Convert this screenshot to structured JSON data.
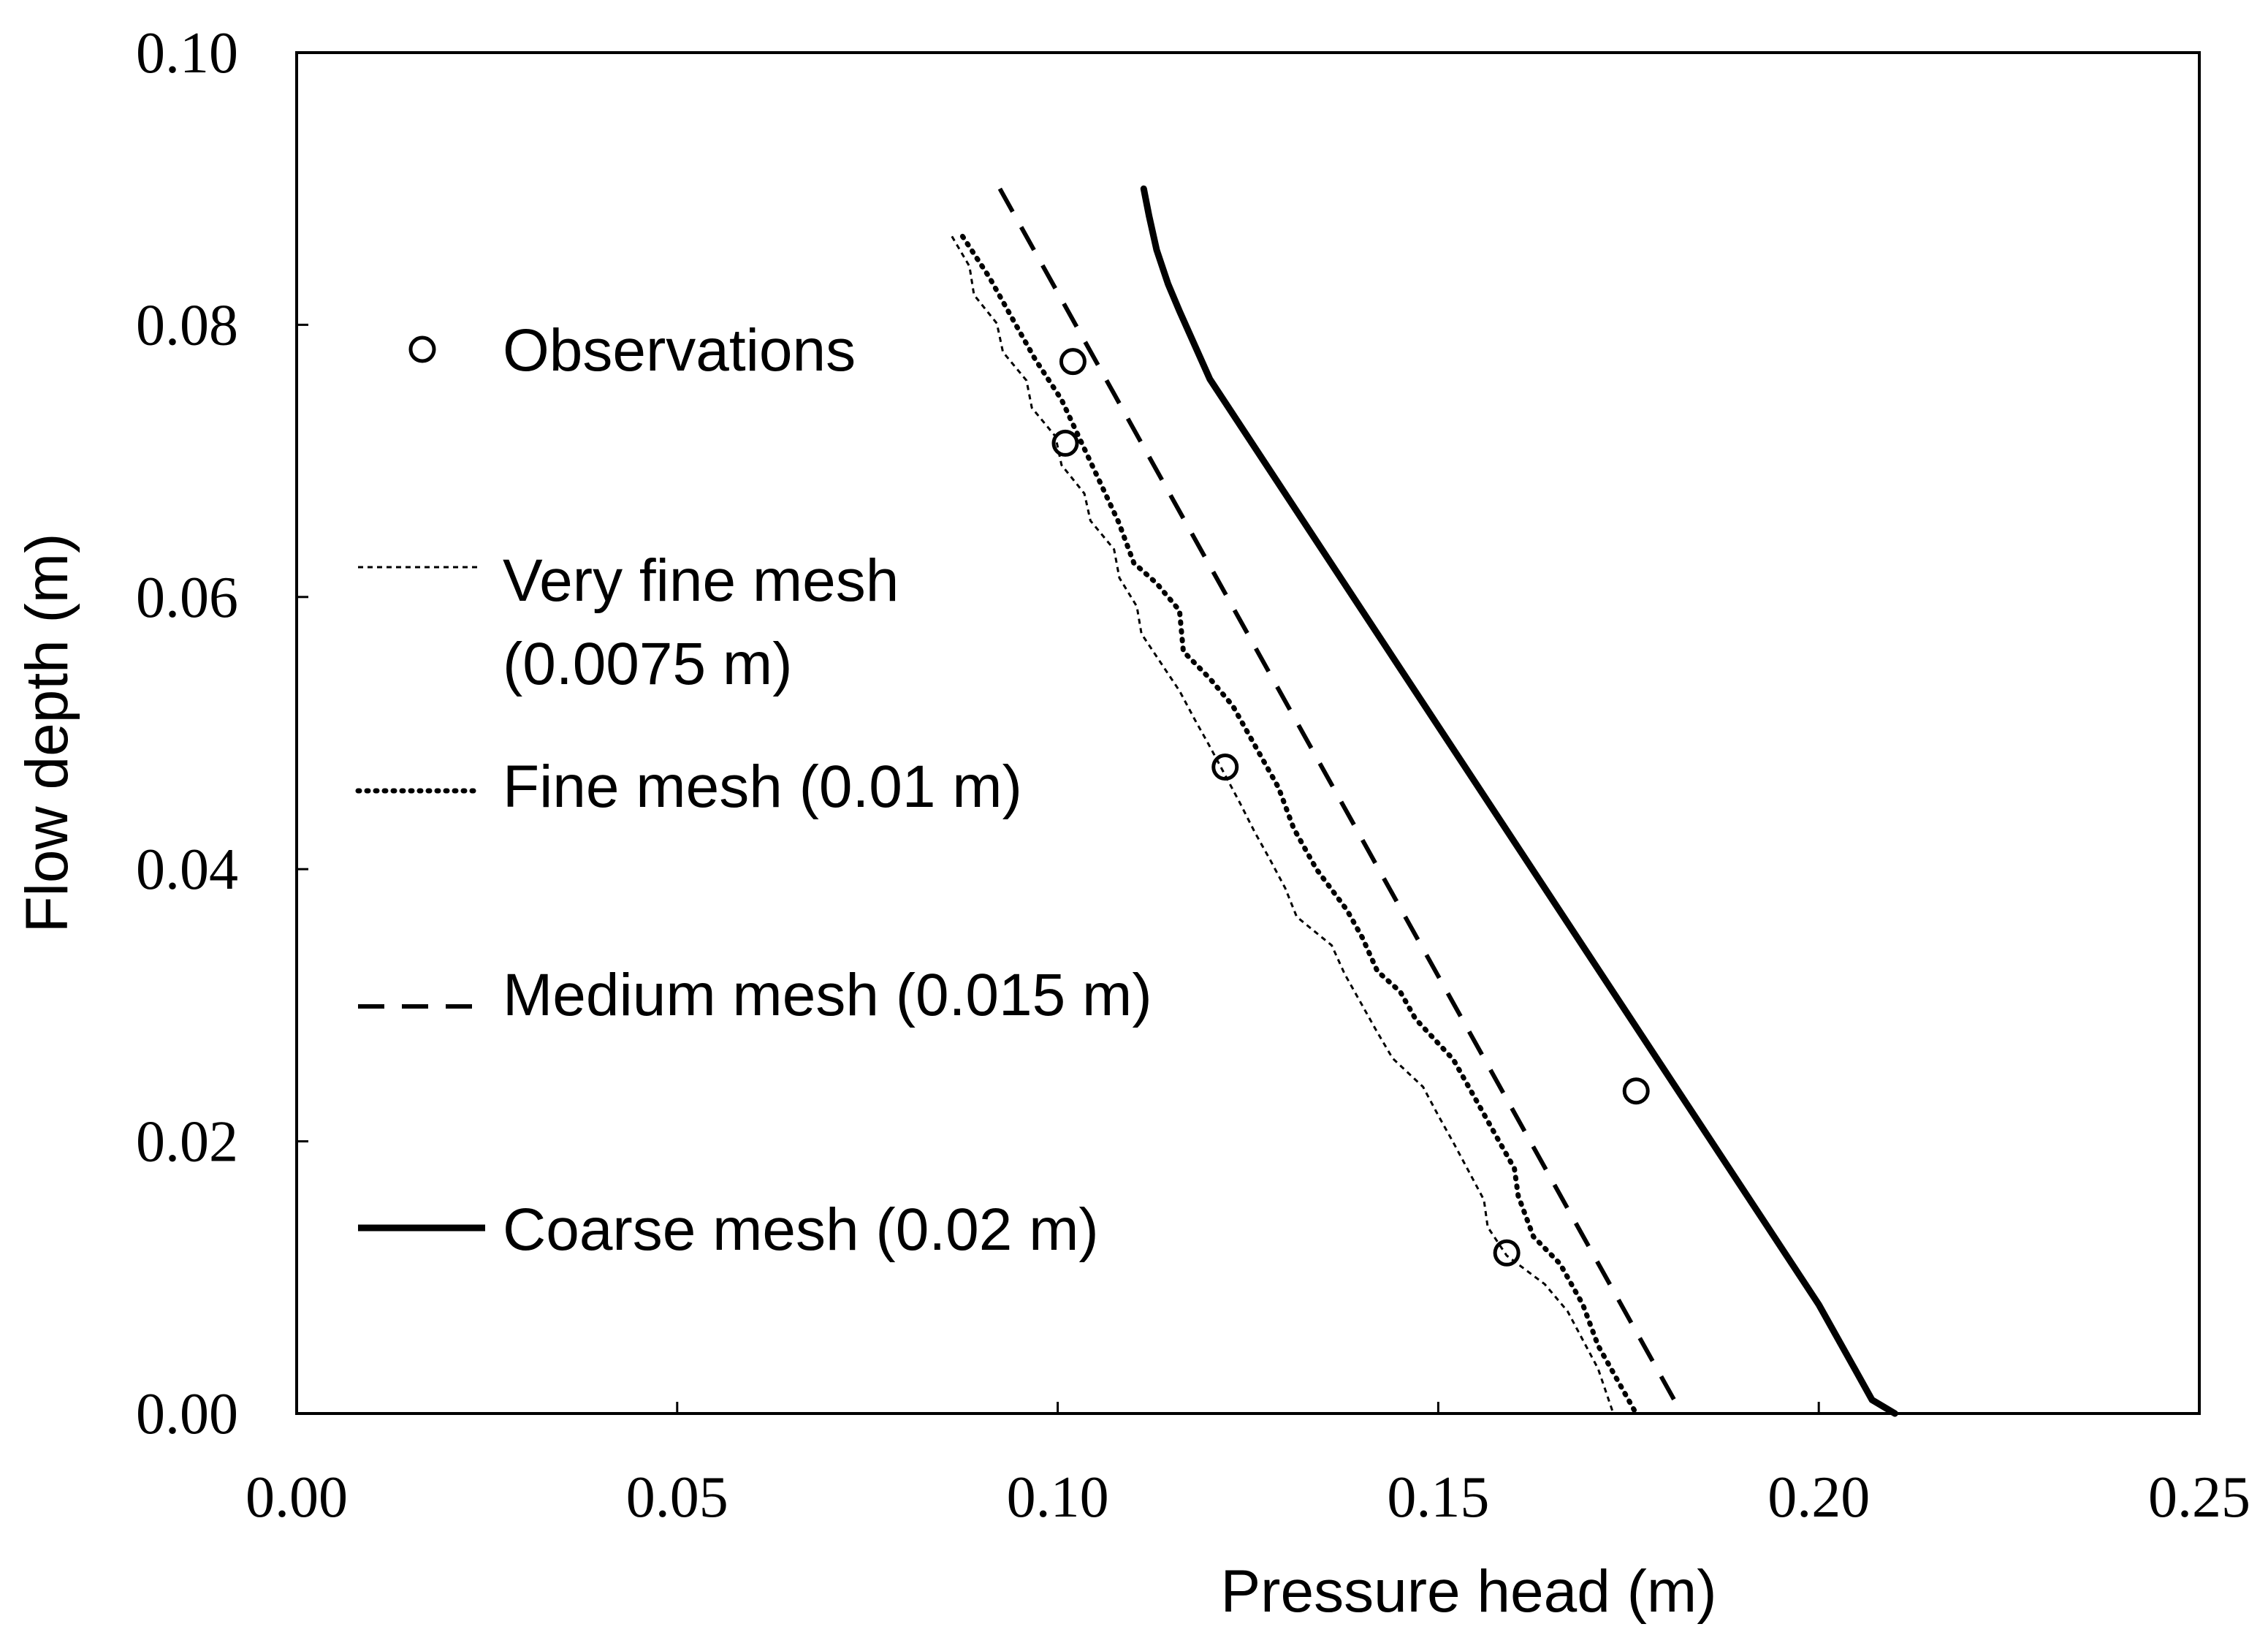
{
  "chart_data": {
    "type": "line",
    "xlabel": "Pressure head (m)",
    "ylabel": "Flow depth (m)",
    "xlim": [
      0,
      0.25
    ],
    "ylim": [
      0,
      0.1
    ],
    "x_ticks": [
      "0.00",
      "0.05",
      "0.10",
      "0.15",
      "0.20",
      "0.25"
    ],
    "y_ticks": [
      "0.00",
      "0.02",
      "0.04",
      "0.06",
      "0.08",
      "0.10"
    ],
    "grid": false,
    "legend_position": "left",
    "observations": {
      "name": "Observations",
      "points": [
        {
          "x": 0.102,
          "y": 0.0773
        },
        {
          "x": 0.101,
          "y": 0.0713
        },
        {
          "x": 0.122,
          "y": 0.0475
        },
        {
          "x": 0.176,
          "y": 0.0237
        },
        {
          "x": 0.159,
          "y": 0.0118
        }
      ]
    },
    "series": [
      {
        "name": "Very fine mesh",
        "name_line2": "(0.0075 m)",
        "style": "thin-dotted",
        "points": [
          [
            0.0861,
            0.0865
          ],
          [
            0.0884,
            0.0843
          ],
          [
            0.089,
            0.0822
          ],
          [
            0.092,
            0.0801
          ],
          [
            0.0928,
            0.078
          ],
          [
            0.0959,
            0.0759
          ],
          [
            0.0966,
            0.0739
          ],
          [
            0.0997,
            0.0718
          ],
          [
            0.1005,
            0.0697
          ],
          [
            0.1035,
            0.0676
          ],
          [
            0.1043,
            0.0656
          ],
          [
            0.1074,
            0.0635
          ],
          [
            0.1081,
            0.0614
          ],
          [
            0.1104,
            0.0593
          ],
          [
            0.111,
            0.0573
          ],
          [
            0.1135,
            0.0552
          ],
          [
            0.116,
            0.0531
          ],
          [
            0.118,
            0.051
          ],
          [
            0.12,
            0.049
          ],
          [
            0.122,
            0.0469
          ],
          [
            0.124,
            0.0448
          ],
          [
            0.1259,
            0.0427
          ],
          [
            0.1279,
            0.0407
          ],
          [
            0.1299,
            0.0386
          ],
          [
            0.1314,
            0.0365
          ],
          [
            0.136,
            0.0344
          ],
          [
            0.1377,
            0.0323
          ],
          [
            0.1398,
            0.0302
          ],
          [
            0.1418,
            0.0282
          ],
          [
            0.144,
            0.0261
          ],
          [
            0.148,
            0.024
          ],
          [
            0.15,
            0.0219
          ],
          [
            0.152,
            0.0199
          ],
          [
            0.154,
            0.0178
          ],
          [
            0.156,
            0.0157
          ],
          [
            0.1565,
            0.0137
          ],
          [
            0.159,
            0.0116
          ],
          [
            0.164,
            0.0095
          ],
          [
            0.167,
            0.0075
          ],
          [
            0.169,
            0.0054
          ],
          [
            0.171,
            0.0033
          ],
          [
            0.173,
            0.0
          ]
        ]
      },
      {
        "name": "Fine mesh (0.01 m)",
        "style": "dotted",
        "points": [
          [
            0.0875,
            0.0865
          ],
          [
            0.091,
            0.0835
          ],
          [
            0.094,
            0.0805
          ],
          [
            0.097,
            0.0775
          ],
          [
            0.1005,
            0.0745
          ],
          [
            0.103,
            0.0715
          ],
          [
            0.1055,
            0.0685
          ],
          [
            0.108,
            0.0655
          ],
          [
            0.11,
            0.0625
          ],
          [
            0.113,
            0.061
          ],
          [
            0.116,
            0.059
          ],
          [
            0.1165,
            0.056
          ],
          [
            0.12,
            0.054
          ],
          [
            0.123,
            0.052
          ],
          [
            0.126,
            0.049
          ],
          [
            0.129,
            0.046
          ],
          [
            0.131,
            0.043
          ],
          [
            0.134,
            0.04
          ],
          [
            0.138,
            0.037
          ],
          [
            0.14,
            0.035
          ],
          [
            0.142,
            0.0325
          ],
          [
            0.145,
            0.031
          ],
          [
            0.147,
            0.029
          ],
          [
            0.152,
            0.026
          ],
          [
            0.155,
            0.023
          ],
          [
            0.158,
            0.02
          ],
          [
            0.16,
            0.018
          ],
          [
            0.1605,
            0.016
          ],
          [
            0.1625,
            0.013
          ],
          [
            0.166,
            0.011
          ],
          [
            0.169,
            0.008
          ],
          [
            0.171,
            0.005
          ],
          [
            0.174,
            0.002
          ],
          [
            0.176,
            0.0
          ]
        ]
      },
      {
        "name": "Medium mesh (0.015 m)",
        "style": "dashed",
        "points": [
          [
            0.0924,
            0.09
          ],
          [
            0.182,
            0.0
          ]
        ]
      },
      {
        "name": "Coarse mesh (0.02 m)",
        "style": "solid",
        "points": [
          [
            0.1113,
            0.09
          ],
          [
            0.112,
            0.088
          ],
          [
            0.113,
            0.0855
          ],
          [
            0.1145,
            0.083
          ],
          [
            0.116,
            0.081
          ],
          [
            0.12,
            0.076
          ],
          [
            0.2,
            0.008
          ],
          [
            0.205,
            0.003
          ],
          [
            0.207,
            0.001
          ],
          [
            0.21,
            0.0
          ]
        ]
      }
    ]
  }
}
